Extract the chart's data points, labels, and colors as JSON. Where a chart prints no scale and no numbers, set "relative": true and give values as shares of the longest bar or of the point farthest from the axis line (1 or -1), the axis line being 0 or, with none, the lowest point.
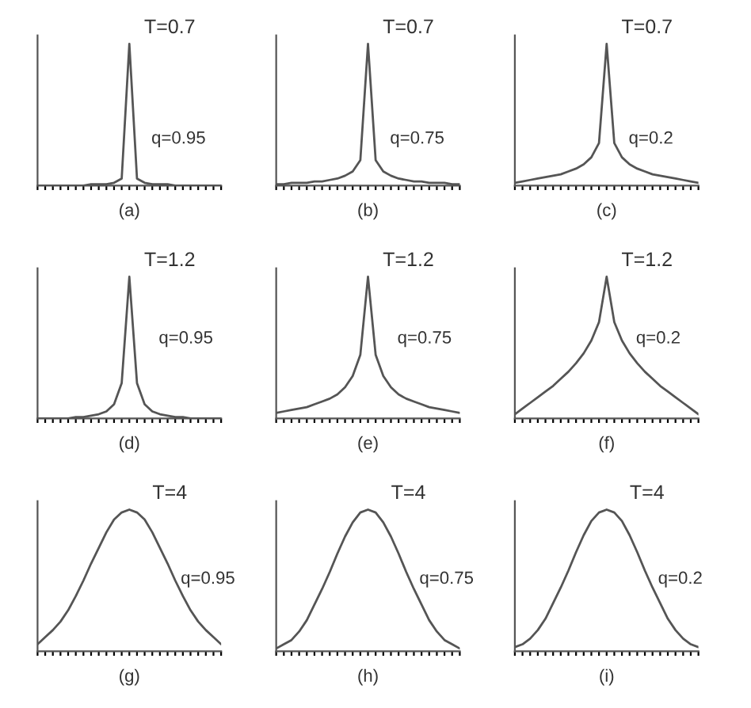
{
  "chart_data": [
    {
      "type": "line",
      "title": "T=0.7",
      "xlabel": "(a)",
      "annotations": [
        "q=0.95"
      ],
      "relative": true,
      "tick_labels": false,
      "grid": false,
      "legend": false,
      "categories": [
        null,
        null,
        null,
        null,
        null,
        null,
        null,
        null,
        null,
        null,
        null,
        null,
        null,
        null,
        null,
        null,
        null,
        null,
        null,
        null,
        null,
        null,
        null,
        null,
        null
      ],
      "series": [
        {
          "color": "#555555",
          "values": [
            0,
            0,
            0,
            0,
            0,
            0,
            0,
            0.01,
            0.01,
            0.01,
            0.02,
            0.05,
            1,
            0.05,
            0.02,
            0.01,
            0.01,
            0.01,
            0,
            0,
            0,
            0,
            0,
            0,
            0
          ]
        }
      ]
    },
    {
      "type": "line",
      "title": "T=0.7",
      "xlabel": "(b)",
      "annotations": [
        "q=0.75"
      ],
      "relative": true,
      "tick_labels": false,
      "grid": false,
      "legend": false,
      "categories": [
        null,
        null,
        null,
        null,
        null,
        null,
        null,
        null,
        null,
        null,
        null,
        null,
        null,
        null,
        null,
        null,
        null,
        null,
        null,
        null,
        null,
        null,
        null,
        null,
        null
      ],
      "series": [
        {
          "color": "#555555",
          "values": [
            0.01,
            0.01,
            0.02,
            0.02,
            0.02,
            0.03,
            0.03,
            0.04,
            0.05,
            0.07,
            0.1,
            0.18,
            1,
            0.18,
            0.1,
            0.07,
            0.05,
            0.04,
            0.03,
            0.03,
            0.02,
            0.02,
            0.02,
            0.01,
            0.01
          ]
        }
      ]
    },
    {
      "type": "line",
      "title": "T=0.7",
      "xlabel": "(c)",
      "annotations": [
        "q=0.2"
      ],
      "relative": true,
      "tick_labels": false,
      "grid": false,
      "legend": false,
      "categories": [
        null,
        null,
        null,
        null,
        null,
        null,
        null,
        null,
        null,
        null,
        null,
        null,
        null,
        null,
        null,
        null,
        null,
        null,
        null,
        null,
        null,
        null,
        null,
        null,
        null
      ],
      "series": [
        {
          "color": "#555555",
          "values": [
            0.02,
            0.03,
            0.04,
            0.05,
            0.06,
            0.07,
            0.08,
            0.1,
            0.12,
            0.15,
            0.2,
            0.3,
            1,
            0.3,
            0.2,
            0.15,
            0.12,
            0.1,
            0.08,
            0.07,
            0.06,
            0.05,
            0.04,
            0.03,
            0.02
          ]
        }
      ]
    },
    {
      "type": "line",
      "title": "T=1.2",
      "xlabel": "(d)",
      "annotations": [
        "q=0.95"
      ],
      "relative": true,
      "tick_labels": false,
      "grid": false,
      "legend": false,
      "categories": [
        null,
        null,
        null,
        null,
        null,
        null,
        null,
        null,
        null,
        null,
        null,
        null,
        null,
        null,
        null,
        null,
        null,
        null,
        null,
        null,
        null,
        null,
        null,
        null,
        null
      ],
      "series": [
        {
          "color": "#555555",
          "values": [
            0,
            0,
            0,
            0,
            0,
            0.01,
            0.01,
            0.02,
            0.03,
            0.05,
            0.1,
            0.25,
            1,
            0.25,
            0.1,
            0.05,
            0.03,
            0.02,
            0.01,
            0.01,
            0,
            0,
            0,
            0,
            0
          ]
        }
      ]
    },
    {
      "type": "line",
      "title": "T=1.2",
      "xlabel": "(e)",
      "annotations": [
        "q=0.75"
      ],
      "relative": true,
      "tick_labels": false,
      "grid": false,
      "legend": false,
      "categories": [
        null,
        null,
        null,
        null,
        null,
        null,
        null,
        null,
        null,
        null,
        null,
        null,
        null,
        null,
        null,
        null,
        null,
        null,
        null,
        null,
        null,
        null,
        null,
        null,
        null
      ],
      "series": [
        {
          "color": "#555555",
          "values": [
            0.04,
            0.05,
            0.06,
            0.07,
            0.08,
            0.1,
            0.12,
            0.14,
            0.17,
            0.22,
            0.3,
            0.45,
            1,
            0.45,
            0.3,
            0.22,
            0.17,
            0.14,
            0.12,
            0.1,
            0.08,
            0.07,
            0.06,
            0.05,
            0.04
          ]
        }
      ]
    },
    {
      "type": "line",
      "title": "T=1.2",
      "xlabel": "(f)",
      "annotations": [
        "q=0.2"
      ],
      "relative": true,
      "tick_labels": false,
      "grid": false,
      "legend": false,
      "categories": [
        null,
        null,
        null,
        null,
        null,
        null,
        null,
        null,
        null,
        null,
        null,
        null,
        null,
        null,
        null,
        null,
        null,
        null,
        null,
        null,
        null,
        null,
        null,
        null,
        null
      ],
      "series": [
        {
          "color": "#555555",
          "values": [
            0.03,
            0.07,
            0.11,
            0.15,
            0.19,
            0.23,
            0.28,
            0.33,
            0.39,
            0.46,
            0.55,
            0.68,
            1,
            0.68,
            0.55,
            0.46,
            0.39,
            0.33,
            0.28,
            0.23,
            0.19,
            0.15,
            0.11,
            0.07,
            0.03
          ]
        }
      ]
    },
    {
      "type": "line",
      "title": "T=4",
      "xlabel": "(g)",
      "annotations": [
        "q=0.95"
      ],
      "relative": true,
      "tick_labels": false,
      "grid": false,
      "legend": false,
      "categories": [
        null,
        null,
        null,
        null,
        null,
        null,
        null,
        null,
        null,
        null,
        null,
        null,
        null,
        null,
        null,
        null,
        null,
        null,
        null,
        null,
        null,
        null,
        null,
        null,
        null
      ],
      "series": [
        {
          "color": "#555555",
          "values": [
            0.05,
            0.1,
            0.15,
            0.21,
            0.29,
            0.39,
            0.5,
            0.62,
            0.73,
            0.84,
            0.93,
            0.98,
            1,
            0.98,
            0.93,
            0.84,
            0.73,
            0.62,
            0.5,
            0.39,
            0.29,
            0.21,
            0.15,
            0.1,
            0.05
          ]
        }
      ]
    },
    {
      "type": "line",
      "title": "T=4",
      "xlabel": "(h)",
      "annotations": [
        "q=0.75"
      ],
      "relative": true,
      "tick_labels": false,
      "grid": false,
      "legend": false,
      "categories": [
        null,
        null,
        null,
        null,
        null,
        null,
        null,
        null,
        null,
        null,
        null,
        null,
        null,
        null,
        null,
        null,
        null,
        null,
        null,
        null,
        null,
        null,
        null,
        null,
        null
      ],
      "series": [
        {
          "color": "#555555",
          "values": [
            0.02,
            0.05,
            0.08,
            0.14,
            0.22,
            0.33,
            0.44,
            0.56,
            0.69,
            0.81,
            0.91,
            0.98,
            1,
            0.98,
            0.91,
            0.81,
            0.69,
            0.56,
            0.44,
            0.33,
            0.22,
            0.14,
            0.08,
            0.05,
            0.02
          ]
        }
      ]
    },
    {
      "type": "line",
      "title": "T=4",
      "xlabel": "(i)",
      "annotations": [
        "q=0.2"
      ],
      "relative": true,
      "tick_labels": false,
      "grid": false,
      "legend": false,
      "categories": [
        null,
        null,
        null,
        null,
        null,
        null,
        null,
        null,
        null,
        null,
        null,
        null,
        null,
        null,
        null,
        null,
        null,
        null,
        null,
        null,
        null,
        null,
        null,
        null,
        null
      ],
      "series": [
        {
          "color": "#555555",
          "values": [
            0.03,
            0.05,
            0.09,
            0.15,
            0.23,
            0.34,
            0.45,
            0.57,
            0.7,
            0.82,
            0.92,
            0.98,
            1,
            0.98,
            0.92,
            0.82,
            0.7,
            0.57,
            0.45,
            0.34,
            0.23,
            0.15,
            0.09,
            0.05,
            0.03
          ]
        }
      ]
    }
  ]
}
